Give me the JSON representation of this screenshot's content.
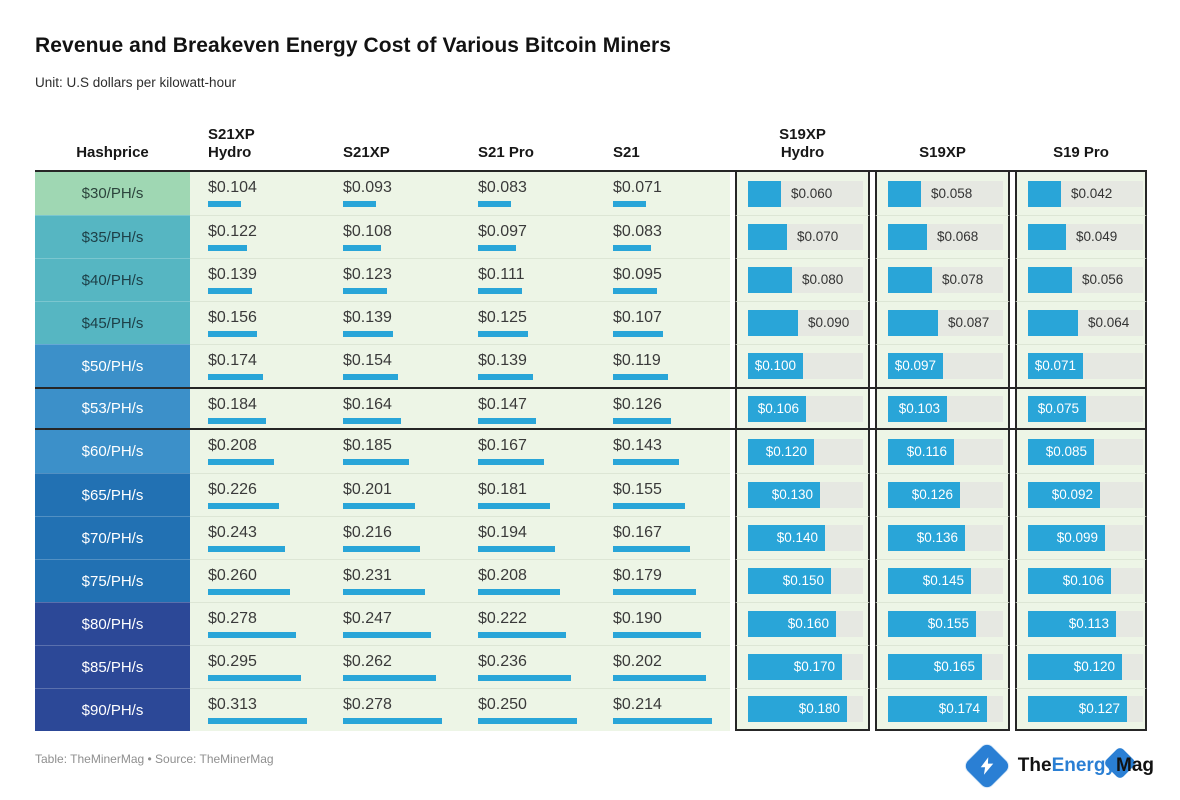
{
  "title": "Revenue and Breakeven Energy Cost of Various Bitcoin Miners",
  "subtitle": "Unit: U.S dollars per kilowatt-hour",
  "footer": "Table: TheMinerMag • Source: TheMinerMag",
  "logo": {
    "part1": "The",
    "part2": "Energy",
    "part3": "Mag"
  },
  "colors": {
    "bar": "#29a5d8",
    "track": "#e6e8e2",
    "cell_bg": "#edf5e6",
    "heavy_border": "#262626",
    "logo_blue": "#2a7fd4"
  },
  "chart_data": {
    "type": "table",
    "title": "Revenue and Breakeven Energy Cost of Various Bitcoin Miners",
    "unit": "U.S dollars per kilowatt-hour",
    "row_header": "Hashprice",
    "rows": [
      "$30/PH/s",
      "$35/PH/s",
      "$40/PH/s",
      "$45/PH/s",
      "$50/PH/s",
      "$53/PH/s",
      "$60/PH/s",
      "$65/PH/s",
      "$70/PH/s",
      "$75/PH/s",
      "$80/PH/s",
      "$85/PH/s",
      "$90/PH/s"
    ],
    "highlight_row": "$53/PH/s",
    "row_colors": [
      "#9fd7b3",
      "#56b6c2",
      "#56b6c2",
      "#56b6c2",
      "#3c90c9",
      "#3c90c9",
      "#3c90c9",
      "#2271b3",
      "#2271b3",
      "#2271b3",
      "#2c4897",
      "#2c4897",
      "#2c4897"
    ],
    "row_text_colors": [
      "#2c443c",
      "#1d3f47",
      "#1d3f47",
      "#1d3f47",
      "#ffffff",
      "#ffffff",
      "#ffffff",
      "#ffffff",
      "#ffffff",
      "#ffffff",
      "#ffffff",
      "#ffffff",
      "#ffffff"
    ],
    "series": [
      {
        "name": "S21XP Hydro",
        "bar_style": "underline",
        "values": [
          0.104,
          0.122,
          0.139,
          0.156,
          0.174,
          0.184,
          0.208,
          0.226,
          0.243,
          0.26,
          0.278,
          0.295,
          0.313
        ]
      },
      {
        "name": "S21XP",
        "bar_style": "underline",
        "values": [
          0.093,
          0.108,
          0.123,
          0.139,
          0.154,
          0.164,
          0.185,
          0.201,
          0.216,
          0.231,
          0.247,
          0.262,
          0.278
        ]
      },
      {
        "name": "S21 Pro",
        "bar_style": "underline",
        "values": [
          0.083,
          0.097,
          0.111,
          0.125,
          0.139,
          0.147,
          0.167,
          0.181,
          0.194,
          0.208,
          0.222,
          0.236,
          0.25
        ]
      },
      {
        "name": "S21",
        "bar_style": "underline",
        "values": [
          0.071,
          0.083,
          0.095,
          0.107,
          0.119,
          0.126,
          0.143,
          0.155,
          0.167,
          0.179,
          0.19,
          0.202,
          0.214
        ]
      },
      {
        "name": "S19XP Hydro",
        "bar_style": "block",
        "values": [
          0.06,
          0.07,
          0.08,
          0.09,
          0.1,
          0.106,
          0.12,
          0.13,
          0.14,
          0.15,
          0.16,
          0.17,
          0.18
        ]
      },
      {
        "name": "S19XP",
        "bar_style": "block",
        "values": [
          0.058,
          0.068,
          0.078,
          0.087,
          0.097,
          0.103,
          0.116,
          0.126,
          0.136,
          0.145,
          0.155,
          0.165,
          0.174
        ]
      },
      {
        "name": "S19 Pro",
        "bar_style": "block",
        "values": [
          0.042,
          0.049,
          0.056,
          0.064,
          0.071,
          0.075,
          0.085,
          0.092,
          0.099,
          0.106,
          0.113,
          0.12,
          0.127
        ]
      }
    ],
    "value_prefix": "$",
    "value_decimals": 3,
    "label_inside_from_row": 4,
    "legend_position": "none",
    "grid": false
  }
}
